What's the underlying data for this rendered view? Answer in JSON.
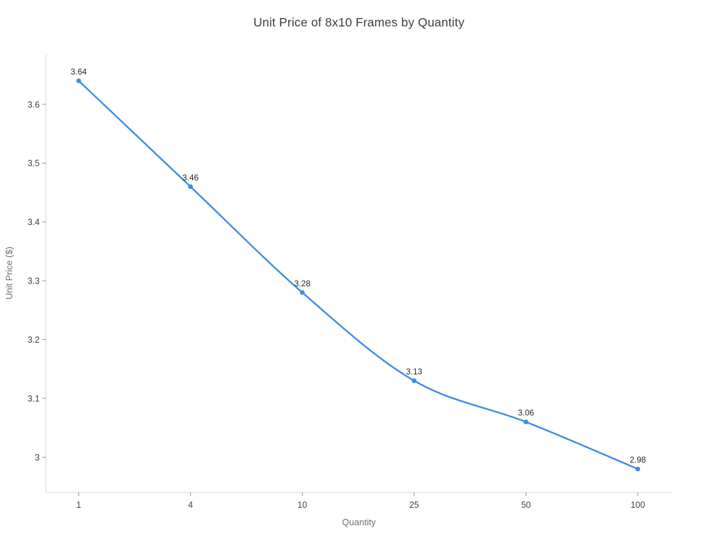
{
  "chart_data": {
    "type": "line",
    "title": "Unit Price of 8x10 Frames by Quantity",
    "xlabel": "Quantity",
    "ylabel": "Unit Price ($)",
    "categories": [
      "1",
      "4",
      "10",
      "25",
      "50",
      "100"
    ],
    "series": [
      {
        "name": "Unit Price",
        "values": [
          3.64,
          3.46,
          3.28,
          3.13,
          3.06,
          2.98
        ],
        "point_labels": [
          "3.64",
          "3.46",
          "3.28",
          "3.13",
          "3.06",
          "2.98"
        ]
      }
    ],
    "y_ticks": [
      {
        "value": 3.0,
        "label": "3"
      },
      {
        "value": 3.1,
        "label": "3.1"
      },
      {
        "value": 3.2,
        "label": "3.2"
      },
      {
        "value": 3.3,
        "label": "3.3"
      },
      {
        "value": 3.4,
        "label": "3.4"
      },
      {
        "value": 3.5,
        "label": "3.5"
      },
      {
        "value": 3.6,
        "label": "3.6"
      }
    ],
    "ylim": [
      2.94,
      3.685
    ],
    "x_axis_type": "categorical-evenly-spaced",
    "grid": false,
    "legend": false,
    "line_shape": "spline",
    "colors": {
      "line": "#3e8ce1",
      "marker": "#3e8ce1",
      "axis_line": "#d6d9dc",
      "tick_mark": "#8f9296",
      "tick_label": "#3f4246",
      "point_label": "#26282b",
      "title": "#3a3d42",
      "axis_title": "#6b6e72",
      "background": "#ffffff"
    }
  }
}
